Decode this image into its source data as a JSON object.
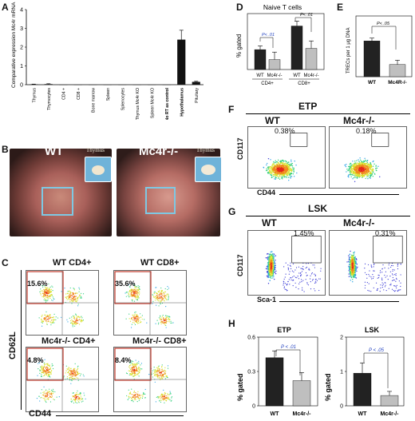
{
  "panels": {
    "a": "A",
    "b": "B",
    "c": "C",
    "d": "D",
    "e": "E",
    "f": "F",
    "g": "G",
    "h": "H"
  },
  "panel_a": {
    "ylabel": "Comparative expression Mc4r mRNA",
    "yticks": [
      "0",
      "1",
      "2",
      "3",
      "4"
    ],
    "categories": [
      "Thymus",
      "Thymocytes",
      "CD4 +",
      "CD8 +",
      "Bone marrow",
      "Spleen",
      "Splenocytes",
      "Thymus Mc4r KO",
      "Spleen Mc4r KO",
      "No RT as control",
      "Hypothalamus",
      "Pituitary"
    ],
    "bold_categories": [
      "No RT as control",
      "Hypothalamus"
    ]
  },
  "panel_b": {
    "wt": "WT",
    "ko": "Mc4r-/-",
    "thymus": "Thymus"
  },
  "panel_c": {
    "wt_cd4": "WT CD4+",
    "wt_cd8": "WT CD8+",
    "ko_cd4": "Mc4r-/- CD4+",
    "ko_cd8": "Mc4r-/- CD8+",
    "p1": "15.6%",
    "p2": "35.6%",
    "p3": "4.8%",
    "p4": "8.4%",
    "ylabel": "CD62L",
    "xlabel": "CD44"
  },
  "panel_d": {
    "title": "Naive T cells",
    "ylabel": "% gated",
    "p1": "P< .01",
    "p2": "P< .01",
    "wt": "WT",
    "ko": "Mc4r-/-",
    "cd4": "CD4+",
    "cd8": "CD8+"
  },
  "panel_e": {
    "ylabel": "TRECs per 1 μg DNA",
    "p": "P< .05",
    "wt": "WT",
    "ko": "Mc4R-/-"
  },
  "panel_f": {
    "title": "ETP",
    "wt": "WT",
    "ko": "Mc4r-/-",
    "pct_wt": "0.38%",
    "pct_ko": "0.18%",
    "gate_wt": "0.38",
    "gate_ko": "0.18",
    "ylabel": "CD117",
    "xlabel": "CD44"
  },
  "panel_g": {
    "title": "LSK",
    "wt": "WT",
    "ko": "Mc4r-/-",
    "pct_wt": "1.45%",
    "pct_ko": "0.31%",
    "gate_wt": "1.45",
    "gate_ko": "0.31",
    "ylabel": "CD117",
    "xlabel": "Sca-1"
  },
  "panel_h": {
    "etp_title": "ETP",
    "lsk_title": "LSK",
    "ylabel": "% gated",
    "etp_yticks": [
      "0",
      "0.3",
      "0.6"
    ],
    "lsk_yticks": [
      "0",
      "1",
      "2"
    ],
    "p1": "P < .01",
    "p2": "P < .05",
    "wt": "WT",
    "ko": "Mc4r-/-"
  },
  "colors": {
    "bar_wt": "#222222",
    "bar_ko": "#bfbfbf",
    "gate": "#c0392b",
    "pval": "#1f3fbf",
    "photo_blue": "#7ec8e3"
  },
  "chart_data": [
    {
      "type": "bar",
      "categories": [
        "Thymus",
        "Thymocytes",
        "CD4 +",
        "CD8 +",
        "Bone marrow",
        "Spleen",
        "Splenocytes",
        "Thymus Mc4r KO",
        "Spleen Mc4r KO",
        "No RT as control",
        "Hypothalamus",
        "Pituitary"
      ],
      "values": [
        0.02,
        0.03,
        0,
        0,
        0,
        0,
        0,
        0,
        0,
        0,
        2.4,
        0.15
      ],
      "errors": [
        0.01,
        0.02,
        0,
        0,
        0,
        0,
        0,
        0,
        0,
        0,
        0.5,
        0.03
      ],
      "ylabel": "Comparative expression Mc4r mRNA",
      "ylim": [
        0,
        4
      ]
    },
    {
      "type": "bar",
      "categories": [
        "CD4+ WT",
        "CD4+ Mc4r-/-",
        "CD8+ WT",
        "CD8+ Mc4r-/-"
      ],
      "values": [
        16,
        8,
        35,
        17
      ],
      "errors": [
        3,
        6,
        4,
        6
      ],
      "ylabel": "% gated",
      "ylim": [
        0,
        45
      ]
    },
    {
      "type": "bar",
      "categories": [
        "WT",
        "Mc4R-/-"
      ],
      "values": [
        5000,
        1700
      ],
      "errors": [
        400,
        600
      ],
      "ylabel": "TRECs per 1 μg DNA",
      "ylim": [
        0,
        8500
      ]
    },
    {
      "type": "bar",
      "title": "ETP",
      "categories": [
        "WT",
        "Mc4r-/-"
      ],
      "values": [
        0.42,
        0.22
      ],
      "errors": [
        0.06,
        0.07
      ],
      "ylabel": "% gated",
      "ylim": [
        0,
        0.6
      ]
    },
    {
      "type": "bar",
      "title": "LSK",
      "categories": [
        "WT",
        "Mc4r-/-"
      ],
      "values": [
        0.95,
        0.3
      ],
      "errors": [
        0.3,
        0.12
      ],
      "ylabel": "% gated",
      "ylim": [
        0,
        2
      ]
    }
  ]
}
